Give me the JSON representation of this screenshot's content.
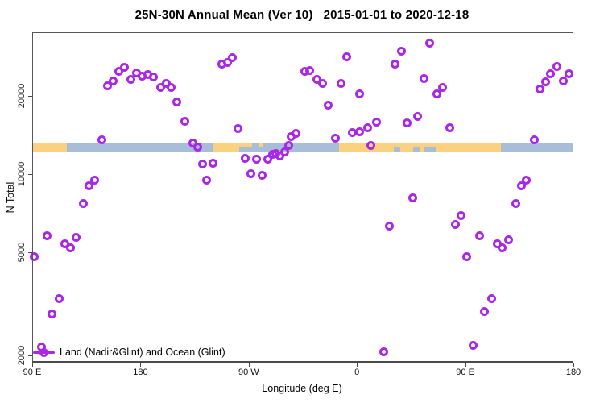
{
  "chart_data": {
    "type": "scatter",
    "title": "25N-30N Annual Mean (Ver 10)   2015-01-01 to 2020-12-18",
    "xlabel": "Longitude (deg E)",
    "ylabel": "N Total",
    "x_axis": {
      "min": 90,
      "max": 540,
      "note": "longitude shown wrapping eastward: 90E -> 180 -> 90W -> 0 -> 90E -> 180",
      "ticks": [
        {
          "lon": 90,
          "label": "90 E"
        },
        {
          "lon": 180,
          "label": "180"
        },
        {
          "lon": 270,
          "label": "90 W"
        },
        {
          "lon": 360,
          "label": "0"
        },
        {
          "lon": 450,
          "label": "90 E"
        },
        {
          "lon": 540,
          "label": "180"
        }
      ],
      "grid": false
    },
    "y_axis": {
      "scale": "log",
      "range": [
        1900,
        34000
      ],
      "ticks": [
        2000,
        5000,
        10000,
        20000
      ],
      "grid": false
    },
    "legend": {
      "label": "Land (Nadir&Glint) and Ocean (Glint)",
      "position": "bottom-left",
      "marker": "open-circle-on-line"
    },
    "colors": {
      "points": "#A928E8",
      "land": "#FAD27F",
      "ocean": "#A8BDD8",
      "axis": "#565656",
      "text": "#000000"
    },
    "map_strip": {
      "description": "land(tan)/ocean(blue) mask band across plot",
      "center_value": 12500,
      "segments": [
        {
          "from": 90,
          "to": 119,
          "type": "land"
        },
        {
          "from": 119,
          "to": 241,
          "type": "ocean"
        },
        {
          "from": 241,
          "to": 262,
          "type": "land"
        },
        {
          "from": 262,
          "to": 345,
          "type": "ocean"
        },
        {
          "from": 345,
          "to": 480,
          "type": "land"
        },
        {
          "from": 480,
          "to": 540,
          "type": "ocean"
        }
      ],
      "overlays": [
        {
          "from": 262,
          "to": 272.5,
          "type": "land-upper"
        },
        {
          "from": 278.5,
          "to": 282,
          "type": "land-upper"
        },
        {
          "from": 391,
          "to": 396,
          "type": "ocean-lower"
        },
        {
          "from": 407,
          "to": 413,
          "type": "ocean-lower"
        },
        {
          "from": 416,
          "to": 426,
          "type": "ocean-lower"
        }
      ]
    },
    "series": [
      {
        "name": "Land (Nadir&Glint) and Ocean (Glint)",
        "marker": "open-circle",
        "points": [
          [
            92.0,
            4800
          ],
          [
            97.4,
            2160
          ],
          [
            102.1,
            5800
          ],
          [
            106.7,
            2900
          ],
          [
            112.1,
            3300
          ],
          [
            116.8,
            5400
          ],
          [
            122.1,
            5200
          ],
          [
            126.8,
            5700
          ],
          [
            132.2,
            7700
          ],
          [
            136.9,
            9000
          ],
          [
            141.6,
            9500
          ],
          [
            147.6,
            13500
          ],
          [
            152.3,
            21800
          ],
          [
            157.6,
            22750
          ],
          [
            162.3,
            24800
          ],
          [
            167.0,
            25700
          ],
          [
            171.7,
            23200
          ],
          [
            176.4,
            24600
          ],
          [
            181.1,
            23900
          ],
          [
            185.8,
            24100
          ],
          [
            191.1,
            23600
          ],
          [
            197.1,
            21600
          ],
          [
            201.8,
            22300
          ],
          [
            205.8,
            21500
          ],
          [
            210.5,
            19000
          ],
          [
            216.6,
            16000
          ],
          [
            223.9,
            13200
          ],
          [
            227.3,
            12700
          ],
          [
            231.3,
            10900
          ],
          [
            235.3,
            9500
          ],
          [
            240.0,
            11000
          ],
          [
            247.4,
            26600
          ],
          [
            252.1,
            27000
          ],
          [
            256.7,
            28000
          ],
          [
            261.4,
            15000
          ],
          [
            266.8,
            11500
          ],
          [
            272.1,
            10000
          ],
          [
            276.2,
            11400
          ],
          [
            281.5,
            9900
          ],
          [
            286.2,
            11400
          ],
          [
            289.6,
            11900
          ],
          [
            292.9,
            12000
          ],
          [
            295.6,
            11700
          ],
          [
            299.6,
            12200
          ],
          [
            303.0,
            12900
          ],
          [
            305.0,
            13900
          ],
          [
            309.6,
            14300
          ],
          [
            317.0,
            24800
          ],
          [
            321.0,
            25000
          ],
          [
            326.4,
            23100
          ],
          [
            331.7,
            22400
          ],
          [
            336.4,
            18400
          ],
          [
            341.8,
            13700
          ],
          [
            347.1,
            22400
          ],
          [
            351.2,
            28200
          ],
          [
            356.5,
            14400
          ],
          [
            362.5,
            20300
          ],
          [
            362.5,
            14600
          ],
          [
            368.6,
            15100
          ],
          [
            371.9,
            12900
          ],
          [
            376.6,
            15800
          ],
          [
            382.0,
            2070
          ],
          [
            387.3,
            6300
          ],
          [
            392.0,
            26600
          ],
          [
            396.7,
            29700
          ],
          [
            401.4,
            15700
          ],
          [
            406.1,
            8100
          ],
          [
            410.7,
            16700
          ],
          [
            416.1,
            23400
          ],
          [
            420.8,
            31900
          ],
          [
            426.8,
            20300
          ],
          [
            431.5,
            21600
          ],
          [
            436.9,
            15100
          ],
          [
            441.6,
            6400
          ],
          [
            446.3,
            6900
          ],
          [
            451.6,
            4800
          ],
          [
            456.3,
            2180
          ],
          [
            461.7,
            5800
          ],
          [
            466.3,
            2950
          ],
          [
            471.7,
            3300
          ],
          [
            476.4,
            5400
          ],
          [
            480.5,
            5200
          ],
          [
            485.8,
            5600
          ],
          [
            491.8,
            7700
          ],
          [
            496.5,
            9000
          ],
          [
            501.1,
            9500
          ],
          [
            507.2,
            13500
          ],
          [
            511.9,
            21300
          ],
          [
            517.2,
            22600
          ],
          [
            520.6,
            24400
          ],
          [
            526.6,
            25900
          ],
          [
            531.3,
            22750
          ],
          [
            536.0,
            24400
          ]
        ]
      }
    ]
  }
}
